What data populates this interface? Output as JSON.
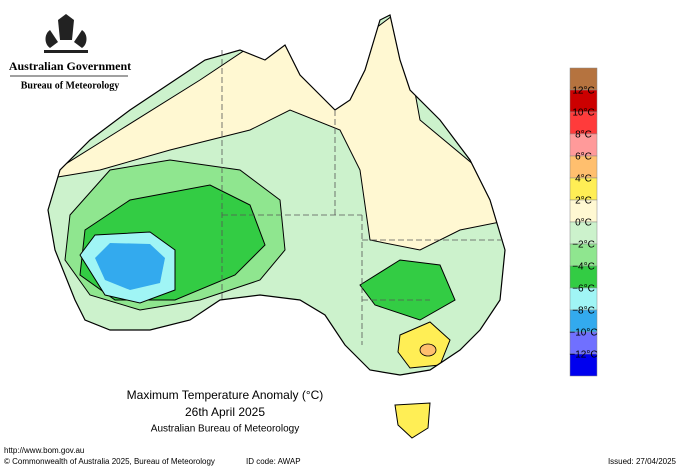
{
  "header": {
    "government": "Australian Government",
    "agency": "Bureau of Meteorology"
  },
  "title": {
    "line1": "Maximum Temperature Anomaly (°C)",
    "line2": "26th April 2025",
    "line3": "Australian Bureau of Meteorology"
  },
  "legend": {
    "labels": [
      "12°C",
      "10°C",
      "8°C",
      "6°C",
      "4°C",
      "2°C",
      "0°C",
      "−2°C",
      "−4°C",
      "−6°C",
      "−8°C",
      "−10°C",
      "−12°C"
    ],
    "colors": [
      "#b5733f",
      "#cc0000",
      "#ff3b3b",
      "#ff9a9a",
      "#ffbf6e",
      "#ffee55",
      "#fff8d2",
      "#ccf2cc",
      "#8fe68f",
      "#33cc44",
      "#a0f5f5",
      "#33aaee",
      "#7070ff",
      "#0000ee"
    ]
  },
  "footer": {
    "url": "http://www.bom.gov.au",
    "copyright": "© Commonwealth of Australia 2025, Bureau of Meteorology",
    "id_code": "ID code: AWAP",
    "issued": "Issued: 27/04/2025"
  }
}
